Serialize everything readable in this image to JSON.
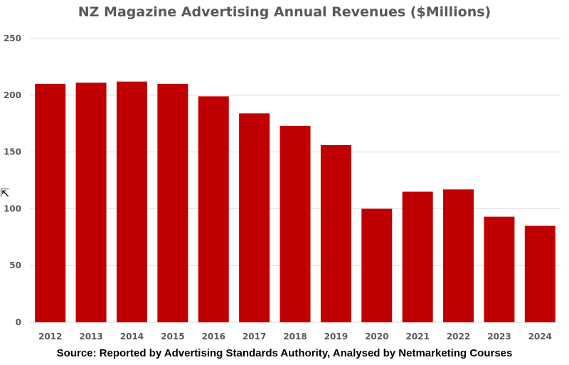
{
  "chart_data": {
    "type": "bar",
    "title": "NZ Magazine Advertising Annual Revenues ($Millions)",
    "source": "Source: Reported by Advertising Standards Authority, Analysed by Netmarketing Courses",
    "categories": [
      "2012",
      "2013",
      "2014",
      "2015",
      "2016",
      "2017",
      "2018",
      "2019",
      "2020",
      "2021",
      "2022",
      "2023",
      "2024"
    ],
    "values": [
      210,
      211,
      212,
      210,
      199,
      184,
      173,
      156,
      100,
      115,
      117,
      93,
      85
    ],
    "xlabel": "",
    "ylabel": "",
    "ylim": [
      0,
      250
    ],
    "yticks": [
      0,
      50,
      100,
      150,
      200,
      250
    ],
    "grid": true,
    "bar_color": "#c00000"
  }
}
